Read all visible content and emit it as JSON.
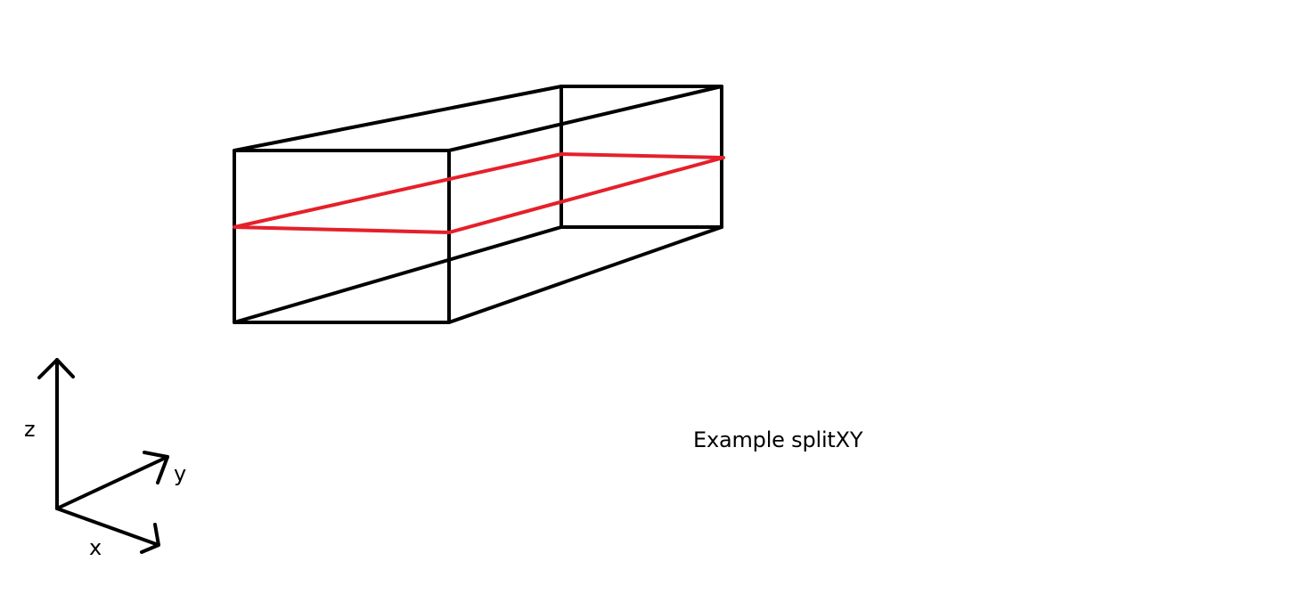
{
  "caption": "Example splitXY",
  "axes": {
    "z_label": "z",
    "y_label": "y",
    "x_label": "x"
  },
  "colors": {
    "box_edges": "#000000",
    "split_plane": "#e5202a",
    "background": "#ffffff"
  }
}
